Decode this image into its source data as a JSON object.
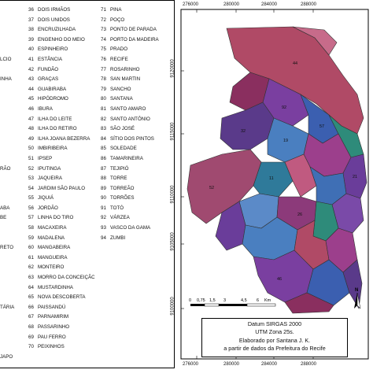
{
  "legend": {
    "col1_fragments": [
      "",
      "",
      "",
      "",
      "",
      "LCIO",
      "",
      "INHA",
      "",
      "",
      "",
      "",
      "",
      "",
      "",
      "",
      "RÃO",
      "",
      "",
      "",
      "ABA",
      "BE",
      "",
      "",
      "RETO",
      "",
      "",
      "",
      "",
      "",
      "TÁRIA",
      "",
      "",
      "",
      "",
      "JAPO",
      ""
    ],
    "col2": [
      {
        "num": "36",
        "name": "DOIS IRMÃOS"
      },
      {
        "num": "37",
        "name": "DOIS UNIDOS"
      },
      {
        "num": "38",
        "name": "ENCRUZILHADA"
      },
      {
        "num": "39",
        "name": "ENGENHO DO MEIO"
      },
      {
        "num": "40",
        "name": "ESPINHEIRO"
      },
      {
        "num": "41",
        "name": "ESTÂNCIA"
      },
      {
        "num": "42",
        "name": "FUNDÃO"
      },
      {
        "num": "43",
        "name": "GRAÇAS"
      },
      {
        "num": "44",
        "name": "GUABIRABA"
      },
      {
        "num": "45",
        "name": "HIPÓDROMO"
      },
      {
        "num": "46",
        "name": "IBURA"
      },
      {
        "num": "47",
        "name": "ILHA DO LEITE"
      },
      {
        "num": "48",
        "name": "ILHA DO RETIRO"
      },
      {
        "num": "49",
        "name": "ILHA JOANA BEZERRA"
      },
      {
        "num": "50",
        "name": "IMBIRIBEIRA"
      },
      {
        "num": "51",
        "name": "IPSEP"
      },
      {
        "num": "52",
        "name": "IPUTINGA"
      },
      {
        "num": "53",
        "name": "JAQUEIRA"
      },
      {
        "num": "54",
        "name": "JARDIM SÃO PAULO"
      },
      {
        "num": "55",
        "name": "JIQUIÁ"
      },
      {
        "num": "56",
        "name": "JORDÃO"
      },
      {
        "num": "57",
        "name": "LINHA DO TIRO"
      },
      {
        "num": "58",
        "name": "MACAXEIRA"
      },
      {
        "num": "59",
        "name": "MADALENA"
      },
      {
        "num": "60",
        "name": "MANGABEIRA"
      },
      {
        "num": "61",
        "name": "MANGUEIRA"
      },
      {
        "num": "62",
        "name": "MONTEIRO"
      },
      {
        "num": "63",
        "name": "MORRO DA CONCEIÇÃO"
      },
      {
        "num": "64",
        "name": "MUSTARDINHA"
      },
      {
        "num": "65",
        "name": "NOVA DESCOBERTA"
      },
      {
        "num": "66",
        "name": "PAISSANDÚ"
      },
      {
        "num": "67",
        "name": "PARNAMIRIM"
      },
      {
        "num": "68",
        "name": "PASSARINHO"
      },
      {
        "num": "69",
        "name": "PAU FERRO"
      },
      {
        "num": "70",
        "name": "PEIXINHOS"
      }
    ],
    "col3": [
      {
        "num": "71",
        "name": "PINA"
      },
      {
        "num": "72",
        "name": "POÇO"
      },
      {
        "num": "73",
        "name": "PONTO DE PARADA"
      },
      {
        "num": "74",
        "name": "PORTO DA MADEIRA"
      },
      {
        "num": "75",
        "name": "PRADO"
      },
      {
        "num": "76",
        "name": "RECIFE"
      },
      {
        "num": "77",
        "name": "ROSARINHO"
      },
      {
        "num": "78",
        "name": "SAN MARTIN"
      },
      {
        "num": "79",
        "name": "SANCHO"
      },
      {
        "num": "80",
        "name": "SANTANA"
      },
      {
        "num": "81",
        "name": "SANTO AMARO"
      },
      {
        "num": "82",
        "name": "SANTO ANTÔNIO"
      },
      {
        "num": "83",
        "name": "SÃO JOSÉ"
      },
      {
        "num": "84",
        "name": "SÍTIO DOS PINTOS"
      },
      {
        "num": "85",
        "name": "SOLEDADE"
      },
      {
        "num": "86",
        "name": "TAMARINEIRA"
      },
      {
        "num": "87",
        "name": "TEJIPIÓ"
      },
      {
        "num": "88",
        "name": "TORRE"
      },
      {
        "num": "89",
        "name": "TORREÃO"
      },
      {
        "num": "90",
        "name": "TORRÕES"
      },
      {
        "num": "91",
        "name": "TOTÓ"
      },
      {
        "num": "92",
        "name": "VÁRZEA"
      },
      {
        "num": "93",
        "name": "VASCO DA GAMA"
      },
      {
        "num": "94",
        "name": "ZUMBI"
      }
    ]
  },
  "map": {
    "easting_ticks": [
      "276000",
      "280000",
      "284000",
      "288000"
    ],
    "northing_ticks": [
      "9120000",
      "9115000",
      "9110000",
      "9105000",
      "9100000"
    ],
    "region_labels": [
      {
        "id": "44",
        "color": "#b04a66"
      },
      {
        "id": "52",
        "color": "#b04a66"
      },
      {
        "id": "57",
        "color": "#3b5fb0"
      },
      {
        "id": "21",
        "color": "#6a3d9a"
      },
      {
        "id": "92",
        "color": "#2e8b7a"
      },
      {
        "id": "19",
        "color": "#4a7fc0"
      },
      {
        "id": "46",
        "color": "#7a3fa0"
      },
      {
        "id": "32",
        "color": "#5a3a8a"
      },
      {
        "id": "26",
        "color": "#8a2f5f"
      },
      {
        "id": "11",
        "color": "#2f7a9a"
      }
    ],
    "scale_bar": {
      "labels": [
        "0",
        "0,75",
        "1,5",
        "3",
        "4,5",
        "6"
      ],
      "unit": "Km"
    },
    "north_label": "N",
    "info_lines": [
      "Datum SIRGAS 2000",
      "UTM Zona 25s.",
      "Elaborado por Santana J. K.",
      "a partir de dados da Prefeitura do Recife"
    ]
  }
}
